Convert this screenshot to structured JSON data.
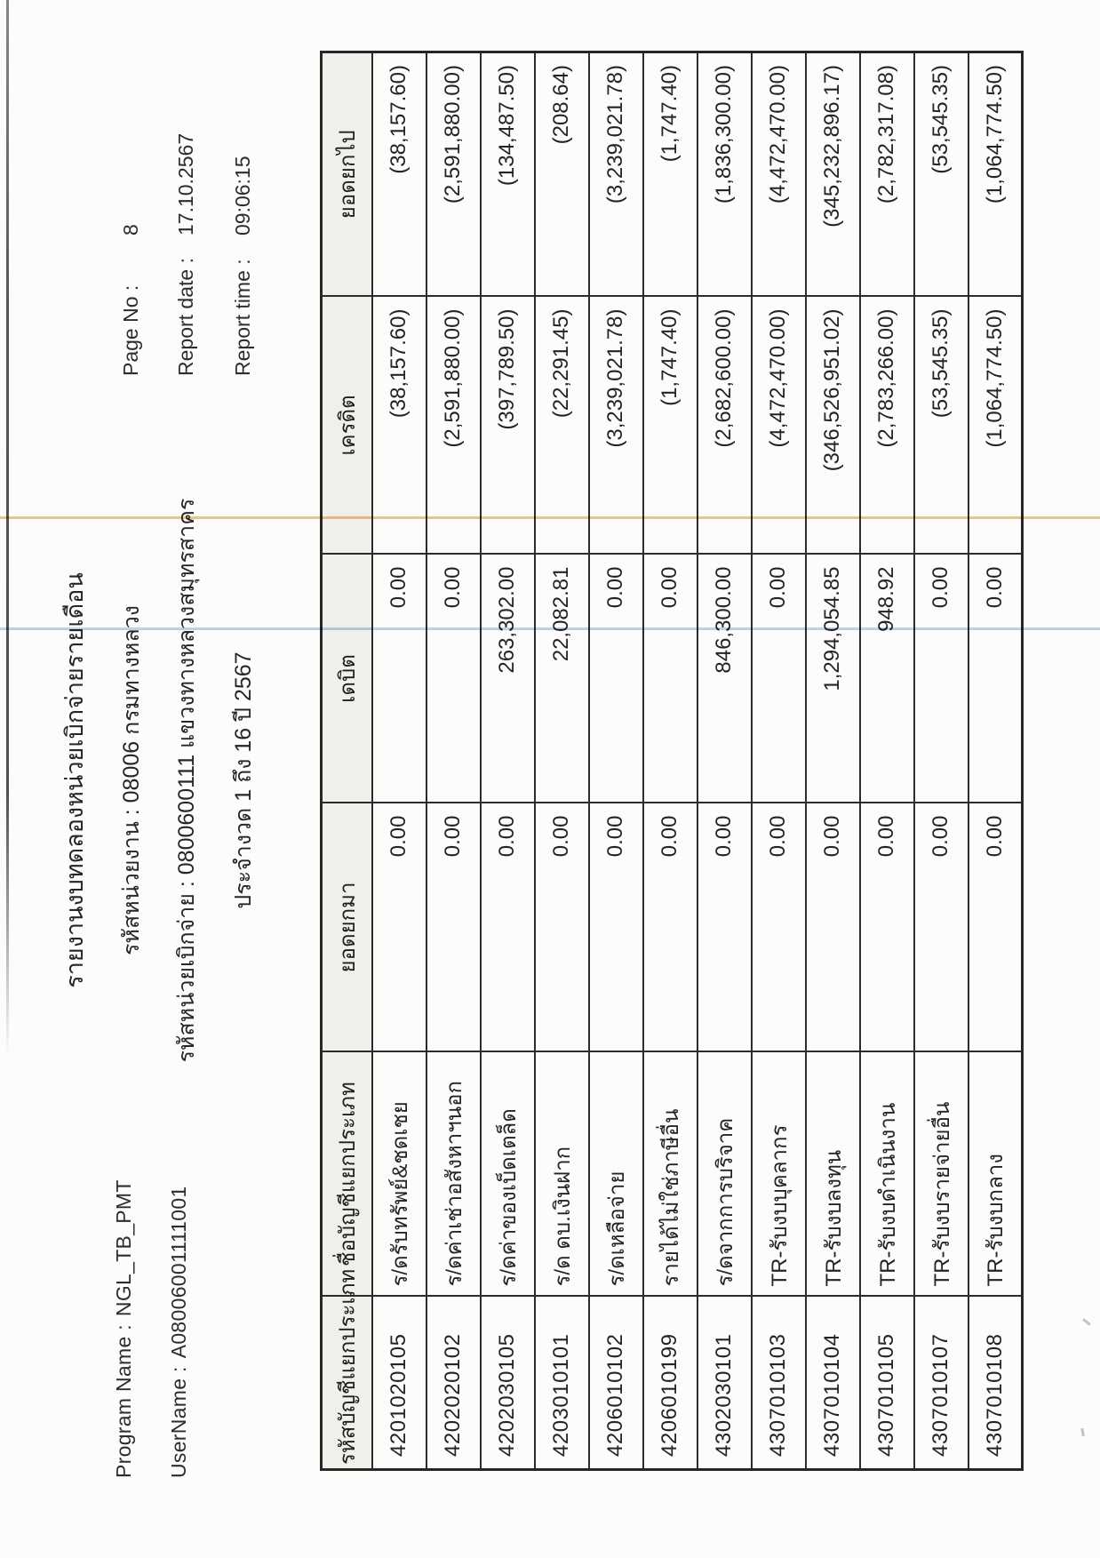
{
  "report_header": {
    "program_name_label": "Program Name :",
    "program_name_value": "NGL_TB_PMT",
    "username_label": "UserName :",
    "username_value": "A08006001111001",
    "title": "รายงานงบทดลองหน่วยเบิกจ่ายรายเดือน",
    "agency_line": "รหัสหน่วยงาน : 08006 กรมทางหลวง",
    "disbursement_line": "รหัสหน่วยเบิกจ่าย : 0800600111 แขวงทางหลวงสมุทรสาคร",
    "period_line": "ประจำงวด 1 ถึง 16 ปี 2567",
    "page_no_label": "Page No :",
    "page_no_value": "8",
    "report_date_label": "Report date :",
    "report_date_value": "17.10.2567",
    "report_time_label": "Report time :",
    "report_time_value": "09:06:15"
  },
  "table": {
    "headers": [
      "รหัสบัญชีแยกประเภท",
      "ชื่อบัญชีแยกประเภท",
      "ยอดยกมา",
      "เดบิต",
      "เครดิต",
      "ยอดยกไป"
    ],
    "column_keys": [
      "account-code",
      "account-name",
      "opening-balance",
      "debit",
      "credit",
      "closing-balance"
    ],
    "rows": [
      [
        "4201020105",
        "ร/ดรับทรัพย์&ชดเชย",
        "0.00",
        "0.00",
        "(38,157.60)",
        "(38,157.60)"
      ],
      [
        "4202020102",
        "ร/ดค่าเช่าอสังหาฯนอก",
        "0.00",
        "0.00",
        "(2,591,880.00)",
        "(2,591,880.00)"
      ],
      [
        "4202030105",
        "ร/ดค่าของเบ็ดเตล็ด",
        "0.00",
        "263,302.00",
        "(397,789.50)",
        "(134,487.50)"
      ],
      [
        "4203010101",
        "ร/ด ดบ.เงินฝาก",
        "0.00",
        "22,082.81",
        "(22,291.45)",
        "(208.64)"
      ],
      [
        "4206010102",
        "ร/ดเหลือจ่าย",
        "0.00",
        "0.00",
        "(3,239,021.78)",
        "(3,239,021.78)"
      ],
      [
        "4206010199",
        "รายได้ไม่ใช่ภาษีอื่น",
        "0.00",
        "0.00",
        "(1,747.40)",
        "(1,747.40)"
      ],
      [
        "4302030101",
        "ร/ดจากการบริจาค",
        "0.00",
        "846,300.00",
        "(2,682,600.00)",
        "(1,836,300.00)"
      ],
      [
        "4307010103",
        "TR-รับงบบุคลากร",
        "0.00",
        "0.00",
        "(4,472,470.00)",
        "(4,472,470.00)"
      ],
      [
        "4307010104",
        "TR-รับงบลงทุน",
        "0.00",
        "1,294,054.85",
        "(346,526,951.02)",
        "(345,232,896.17)"
      ],
      [
        "4307010105",
        "TR-รับงบดำเนินงาน",
        "0.00",
        "948.92",
        "(2,783,266.00)",
        "(2,782,317.08)"
      ],
      [
        "4307010107",
        "TR-รับงบรายจ่ายอื่น",
        "0.00",
        "0.00",
        "(53,545.35)",
        "(53,545.35)"
      ],
      [
        "4307010108",
        "TR-รับงบกลาง",
        "0.00",
        "0.00",
        "(1,064,774.50)",
        "(1,064,774.50)"
      ]
    ]
  },
  "artifacts": {
    "highlight_orange": "#e2a349",
    "highlight_blue": "#8fb2e3",
    "scan_edge_color": "#2a2a2a",
    "table_header_bg": "#f1efea",
    "border_color": "#2c2c2c"
  }
}
